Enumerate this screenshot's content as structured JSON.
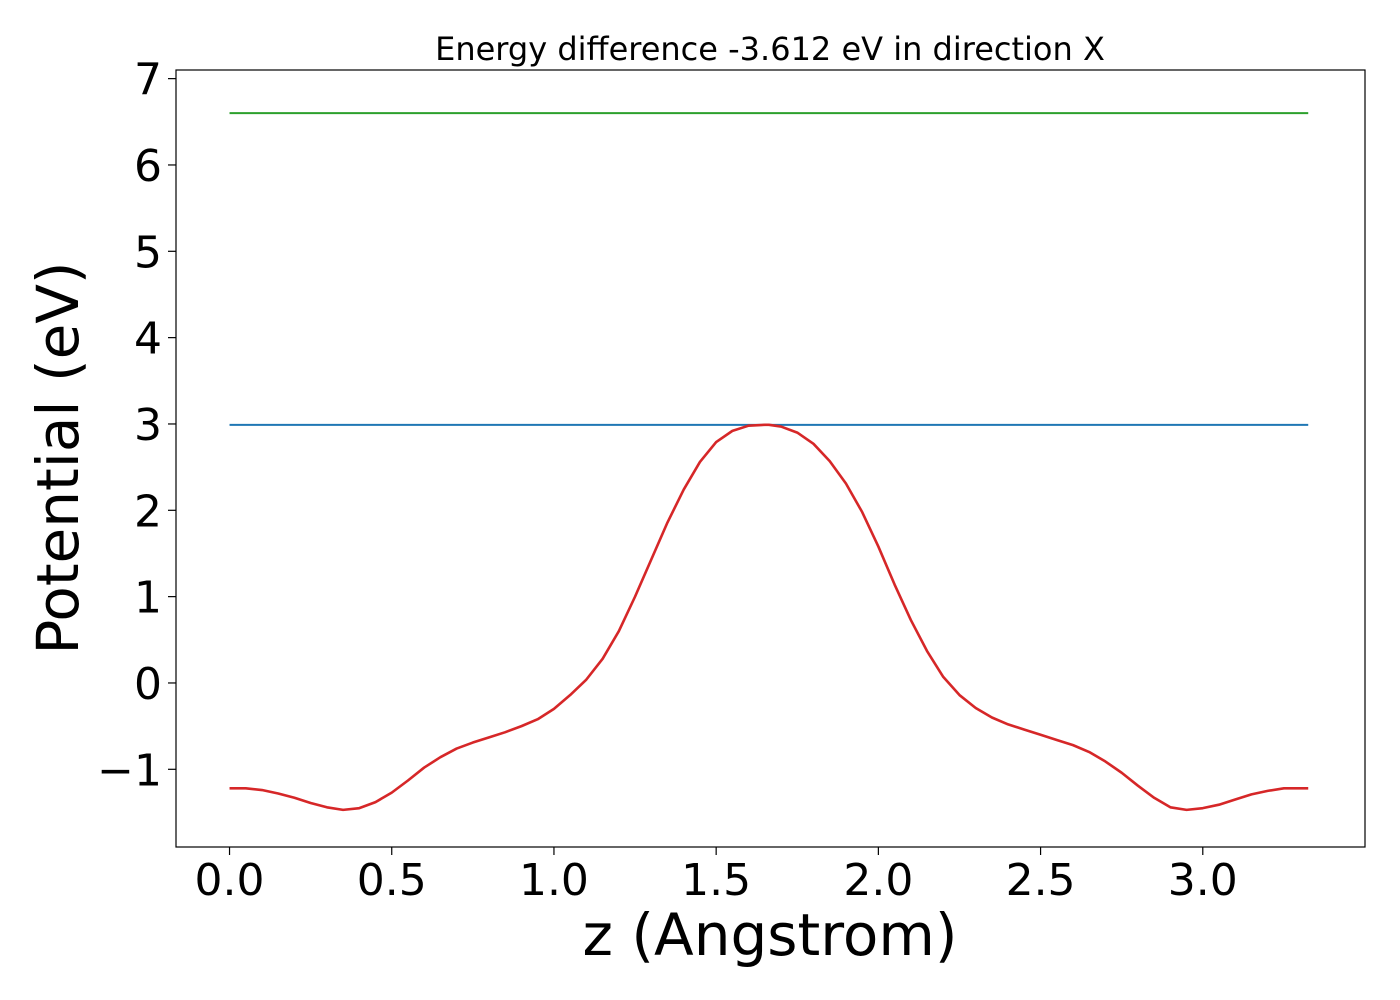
{
  "chart_data": {
    "type": "line",
    "title": "Energy difference -3.612 eV in direction X",
    "xlabel": "z (Angstrom)",
    "ylabel": "Potential (eV)",
    "xlim": [
      -0.165,
      3.5
    ],
    "ylim": [
      -1.9,
      7.1
    ],
    "xticks": [
      0.0,
      0.5,
      1.0,
      1.5,
      2.0,
      2.5,
      3.0
    ],
    "xtick_labels": [
      "0.0",
      "0.5",
      "1.0",
      "1.5",
      "2.0",
      "2.5",
      "3.0"
    ],
    "yticks": [
      -1,
      0,
      1,
      2,
      3,
      4,
      5,
      6,
      7
    ],
    "ytick_labels": [
      "−1",
      "0",
      "1",
      "2",
      "3",
      "4",
      "5",
      "6",
      "7"
    ],
    "grid": false,
    "series": [
      {
        "color": "#2ca02c",
        "x": [
          0.0,
          3.325
        ],
        "y": [
          6.6,
          6.6
        ]
      },
      {
        "color": "#1f77b4",
        "x": [
          0.0,
          3.325
        ],
        "y": [
          2.99,
          2.99
        ]
      },
      {
        "color": "#d62728",
        "x": [
          0.0,
          0.05,
          0.1,
          0.15,
          0.2,
          0.25,
          0.3,
          0.35,
          0.4,
          0.45,
          0.5,
          0.55,
          0.6,
          0.65,
          0.7,
          0.75,
          0.8,
          0.85,
          0.9,
          0.95,
          1.0,
          1.05,
          1.1,
          1.15,
          1.2,
          1.25,
          1.3,
          1.35,
          1.4,
          1.45,
          1.5,
          1.55,
          1.6,
          1.65,
          1.6625,
          1.7,
          1.75,
          1.8,
          1.85,
          1.9,
          1.95,
          2.0,
          2.05,
          2.1,
          2.15,
          2.2,
          2.25,
          2.3,
          2.35,
          2.4,
          2.45,
          2.5,
          2.55,
          2.6,
          2.65,
          2.7,
          2.75,
          2.8,
          2.85,
          2.9,
          2.95,
          3.0,
          3.05,
          3.1,
          3.15,
          3.2,
          3.25,
          3.3,
          3.325
        ],
        "y": [
          -1.22,
          -1.22,
          -1.24,
          -1.28,
          -1.33,
          -1.39,
          -1.44,
          -1.47,
          -1.45,
          -1.38,
          -1.27,
          -1.13,
          -0.98,
          -0.86,
          -0.76,
          -0.69,
          -0.63,
          -0.57,
          -0.5,
          -0.42,
          -0.3,
          -0.14,
          0.04,
          0.28,
          0.6,
          1.0,
          1.43,
          1.86,
          2.24,
          2.56,
          2.79,
          2.92,
          2.98,
          2.99,
          2.99,
          2.97,
          2.9,
          2.77,
          2.57,
          2.31,
          1.98,
          1.58,
          1.14,
          0.73,
          0.37,
          0.07,
          -0.14,
          -0.29,
          -0.4,
          -0.48,
          -0.54,
          -0.6,
          -0.66,
          -0.72,
          -0.8,
          -0.91,
          -1.04,
          -1.19,
          -1.33,
          -1.44,
          -1.47,
          -1.45,
          -1.41,
          -1.35,
          -1.29,
          -1.25,
          -1.22,
          -1.22,
          -1.22
        ]
      }
    ]
  }
}
